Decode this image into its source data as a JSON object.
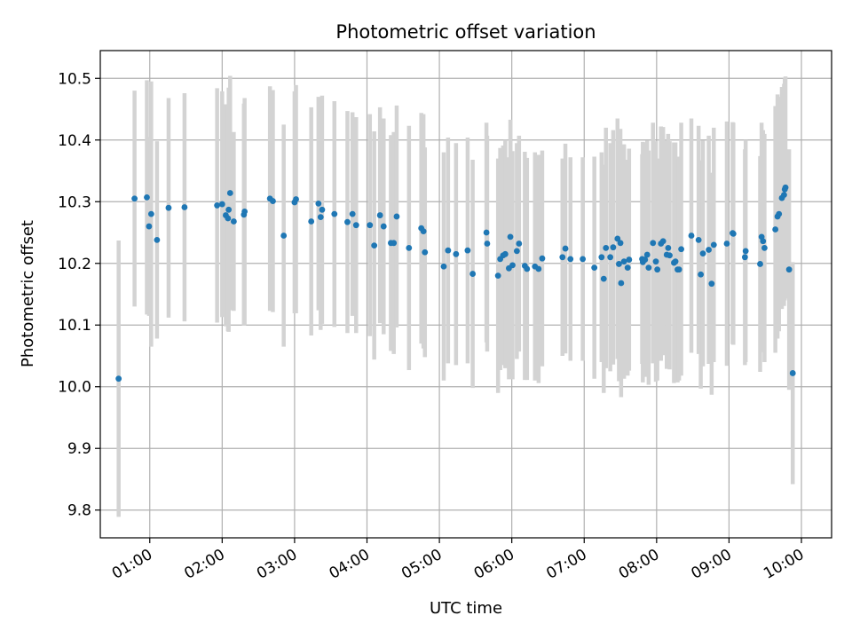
{
  "chart_data": {
    "type": "scatter",
    "title": "Photometric offset variation",
    "xlabel": "UTC time",
    "ylabel": "Photometric offset",
    "x_unit": "hours (UTC)",
    "xlim": [
      "00:19",
      "10:25"
    ],
    "ylim": [
      9.755,
      10.545
    ],
    "grid": true,
    "legend": "none",
    "x_ticks": [
      {
        "t": 1,
        "label": "01:00"
      },
      {
        "t": 2,
        "label": "02:00"
      },
      {
        "t": 3,
        "label": "03:00"
      },
      {
        "t": 4,
        "label": "04:00"
      },
      {
        "t": 5,
        "label": "05:00"
      },
      {
        "t": 6,
        "label": "06:00"
      },
      {
        "t": 7,
        "label": "07:00"
      },
      {
        "t": 8,
        "label": "08:00"
      },
      {
        "t": 9,
        "label": "09:00"
      },
      {
        "t": 10,
        "label": "10:00"
      }
    ],
    "y_ticks": [
      {
        "v": 9.8,
        "label": "9.8"
      },
      {
        "v": 9.9,
        "label": "9.9"
      },
      {
        "v": 10.0,
        "label": "10.0"
      },
      {
        "v": 10.1,
        "label": "10.1"
      },
      {
        "v": 10.2,
        "label": "10.2"
      },
      {
        "v": 10.3,
        "label": "10.3"
      },
      {
        "v": 10.4,
        "label": "10.4"
      },
      {
        "v": 10.5,
        "label": "10.5"
      }
    ],
    "colors": {
      "marker": "#1f77b4",
      "errorbar": "#d3d3d3",
      "grid": "#b0b0b0"
    },
    "series": [
      {
        "marker": "dot",
        "points": [
          [
            0.57,
            10.013,
            0.224
          ],
          [
            0.79,
            10.305,
            0.175
          ],
          [
            0.96,
            10.307,
            0.19
          ],
          [
            0.99,
            10.26,
            0.145
          ],
          [
            1.02,
            10.28,
            0.215
          ],
          [
            1.1,
            10.238,
            0.16
          ],
          [
            1.26,
            10.29,
            0.178
          ],
          [
            1.48,
            10.291,
            0.185
          ],
          [
            1.93,
            10.294,
            0.19
          ],
          [
            2.0,
            10.296,
            0.183
          ],
          [
            2.05,
            10.278,
            0.18
          ],
          [
            2.08,
            10.273,
            0.183
          ],
          [
            2.09,
            10.287,
            0.198
          ],
          [
            2.11,
            10.314,
            0.19
          ],
          [
            2.16,
            10.268,
            0.145
          ],
          [
            2.3,
            10.279,
            0.18
          ],
          [
            2.31,
            10.284,
            0.184
          ],
          [
            2.66,
            10.305,
            0.182
          ],
          [
            2.7,
            10.301,
            0.18
          ],
          [
            2.85,
            10.245,
            0.18
          ],
          [
            3.0,
            10.299,
            0.18
          ],
          [
            3.02,
            10.304,
            0.185
          ],
          [
            3.23,
            10.268,
            0.185
          ],
          [
            3.33,
            10.297,
            0.173
          ],
          [
            3.36,
            10.275,
            0.183
          ],
          [
            3.38,
            10.287,
            0.185
          ],
          [
            3.55,
            10.28,
            0.183
          ],
          [
            3.73,
            10.267,
            0.18
          ],
          [
            3.8,
            10.28,
            0.165
          ],
          [
            3.85,
            10.262,
            0.175
          ],
          [
            4.04,
            10.262,
            0.18
          ],
          [
            4.1,
            10.229,
            0.185
          ],
          [
            4.18,
            10.278,
            0.175
          ],
          [
            4.23,
            10.26,
            0.175
          ],
          [
            4.33,
            10.233,
            0.175
          ],
          [
            4.37,
            10.233,
            0.18
          ],
          [
            4.41,
            10.276,
            0.18
          ],
          [
            4.58,
            10.225,
            0.198
          ],
          [
            4.75,
            10.257,
            0.187
          ],
          [
            4.78,
            10.252,
            0.19
          ],
          [
            4.8,
            10.218,
            0.17
          ],
          [
            5.06,
            10.195,
            0.185
          ],
          [
            5.12,
            10.221,
            0.183
          ],
          [
            5.23,
            10.215,
            0.18
          ],
          [
            5.39,
            10.221,
            0.183
          ],
          [
            5.46,
            10.183,
            0.185
          ],
          [
            5.65,
            10.25,
            0.178
          ],
          [
            5.66,
            10.232,
            0.175
          ],
          [
            5.81,
            10.18,
            0.19
          ],
          [
            5.84,
            10.207,
            0.18
          ],
          [
            5.88,
            10.213,
            0.178
          ],
          [
            5.91,
            10.215,
            0.185
          ],
          [
            5.96,
            10.192,
            0.18
          ],
          [
            5.98,
            10.243,
            0.19
          ],
          [
            6.01,
            10.197,
            0.185
          ],
          [
            6.07,
            10.22,
            0.175
          ],
          [
            6.1,
            10.232,
            0.175
          ],
          [
            6.18,
            10.196,
            0.185
          ],
          [
            6.21,
            10.191,
            0.18
          ],
          [
            6.32,
            10.195,
            0.185
          ],
          [
            6.37,
            10.191,
            0.185
          ],
          [
            6.42,
            10.208,
            0.175
          ],
          [
            6.7,
            10.21,
            0.16
          ],
          [
            6.74,
            10.224,
            0.17
          ],
          [
            6.81,
            10.207,
            0.165
          ],
          [
            6.98,
            10.207,
            0.165
          ],
          [
            7.14,
            10.193,
            0.18
          ],
          [
            7.24,
            10.21,
            0.17
          ],
          [
            7.27,
            10.175,
            0.185
          ],
          [
            7.3,
            10.225,
            0.195
          ],
          [
            7.36,
            10.21,
            0.185
          ],
          [
            7.4,
            10.226,
            0.19
          ],
          [
            7.46,
            10.24,
            0.195
          ],
          [
            7.48,
            10.199,
            0.19
          ],
          [
            7.5,
            10.233,
            0.185
          ],
          [
            7.51,
            10.168,
            0.185
          ],
          [
            7.55,
            10.203,
            0.19
          ],
          [
            7.6,
            10.193,
            0.175
          ],
          [
            7.62,
            10.206,
            0.18
          ],
          [
            7.8,
            10.207,
            0.17
          ],
          [
            7.81,
            10.202,
            0.195
          ],
          [
            7.84,
            10.206,
            0.19
          ],
          [
            7.87,
            10.214,
            0.185
          ],
          [
            7.89,
            10.193,
            0.19
          ],
          [
            7.95,
            10.233,
            0.195
          ],
          [
            7.99,
            10.203,
            0.195
          ],
          [
            8.01,
            10.19,
            0.18
          ],
          [
            8.06,
            10.232,
            0.19
          ],
          [
            8.09,
            10.236,
            0.185
          ],
          [
            8.14,
            10.214,
            0.185
          ],
          [
            8.16,
            10.225,
            0.185
          ],
          [
            8.18,
            10.213,
            0.185
          ],
          [
            8.24,
            10.201,
            0.195
          ],
          [
            8.26,
            10.203,
            0.193
          ],
          [
            8.29,
            10.19,
            0.183
          ],
          [
            8.31,
            10.19,
            0.18
          ],
          [
            8.34,
            10.223,
            0.205
          ],
          [
            8.48,
            10.245,
            0.19
          ],
          [
            8.58,
            10.238,
            0.185
          ],
          [
            8.61,
            10.182,
            0.185
          ],
          [
            8.64,
            10.216,
            0.183
          ],
          [
            8.72,
            10.222,
            0.185
          ],
          [
            8.76,
            10.167,
            0.18
          ],
          [
            8.79,
            10.23,
            0.19
          ],
          [
            8.97,
            10.232,
            0.198
          ],
          [
            9.05,
            10.249,
            0.18
          ],
          [
            9.06,
            10.248,
            0.18
          ],
          [
            9.22,
            10.21,
            0.175
          ],
          [
            9.23,
            10.22,
            0.18
          ],
          [
            9.43,
            10.199,
            0.175
          ],
          [
            9.45,
            10.243,
            0.185
          ],
          [
            9.47,
            10.236,
            0.18
          ],
          [
            9.49,
            10.225,
            0.185
          ],
          [
            9.64,
            10.255,
            0.2
          ],
          [
            9.67,
            10.276,
            0.198
          ],
          [
            9.69,
            10.28,
            0.19
          ],
          [
            9.73,
            10.306,
            0.18
          ],
          [
            9.76,
            10.311,
            0.18
          ],
          [
            9.77,
            10.32,
            0.18
          ],
          [
            9.78,
            10.323,
            0.18
          ],
          [
            9.83,
            10.19,
            0.195
          ],
          [
            9.88,
            10.022,
            0.18
          ]
        ]
      }
    ]
  }
}
